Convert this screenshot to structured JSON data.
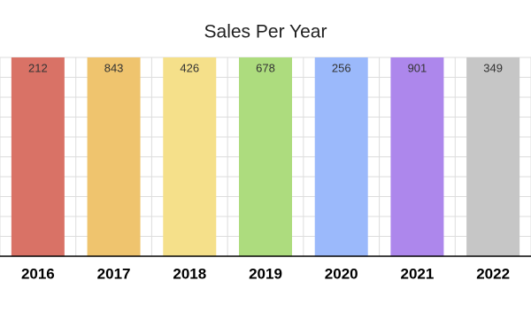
{
  "chart_data": {
    "type": "bar",
    "title": "Sales Per Year",
    "categories": [
      "2016",
      "2017",
      "2018",
      "2019",
      "2020",
      "2021",
      "2022"
    ],
    "values": [
      212,
      843,
      426,
      678,
      256,
      901,
      349
    ],
    "colors": [
      "#d97266",
      "#efc46e",
      "#f5e08a",
      "#addc7e",
      "#9bb9fb",
      "#ad87ec",
      "#c6c6c6"
    ],
    "ylim": [
      0,
      200
    ],
    "grid": true
  }
}
